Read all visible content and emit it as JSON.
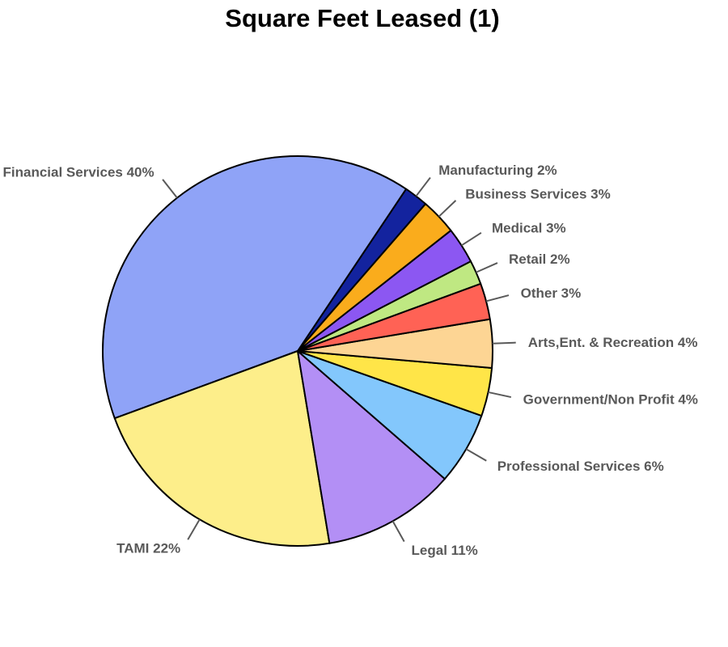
{
  "chart_data": {
    "type": "pie",
    "title": "Square Feet Leased (1)",
    "slices": [
      {
        "label": "Manufacturing",
        "value": 2,
        "pct_label": "2%",
        "color": "#13239E"
      },
      {
        "label": "Financial Services",
        "value": 40,
        "pct_label": "40%",
        "color": "#8FA3F7"
      },
      {
        "label": "TAMI",
        "value": 22,
        "pct_label": "22%",
        "color": "#FDEE8A"
      },
      {
        "label": "Legal",
        "value": 11,
        "pct_label": "11%",
        "color": "#B38FF5"
      },
      {
        "label": "Professional Services",
        "value": 6,
        "pct_label": "6%",
        "color": "#83C7FC"
      },
      {
        "label": "Government/Non Profit",
        "value": 4,
        "pct_label": "4%",
        "color": "#FFE548"
      },
      {
        "label": "Arts,Ent. & Recreation",
        "value": 4,
        "pct_label": "4%",
        "color": "#FDD594"
      },
      {
        "label": "Other",
        "value": 3,
        "pct_label": "3%",
        "color": "#FF6255"
      },
      {
        "label": "Retail",
        "value": 2,
        "pct_label": "2%",
        "color": "#BFE882"
      },
      {
        "label": "Medical",
        "value": 3,
        "pct_label": "3%",
        "color": "#8C57F2"
      },
      {
        "label": "Business Services",
        "value": 3,
        "pct_label": "3%",
        "color": "#FAAC1C"
      }
    ],
    "start_angle_deg": 49,
    "direction": "counterclockwise",
    "label_color": "#595959"
  }
}
